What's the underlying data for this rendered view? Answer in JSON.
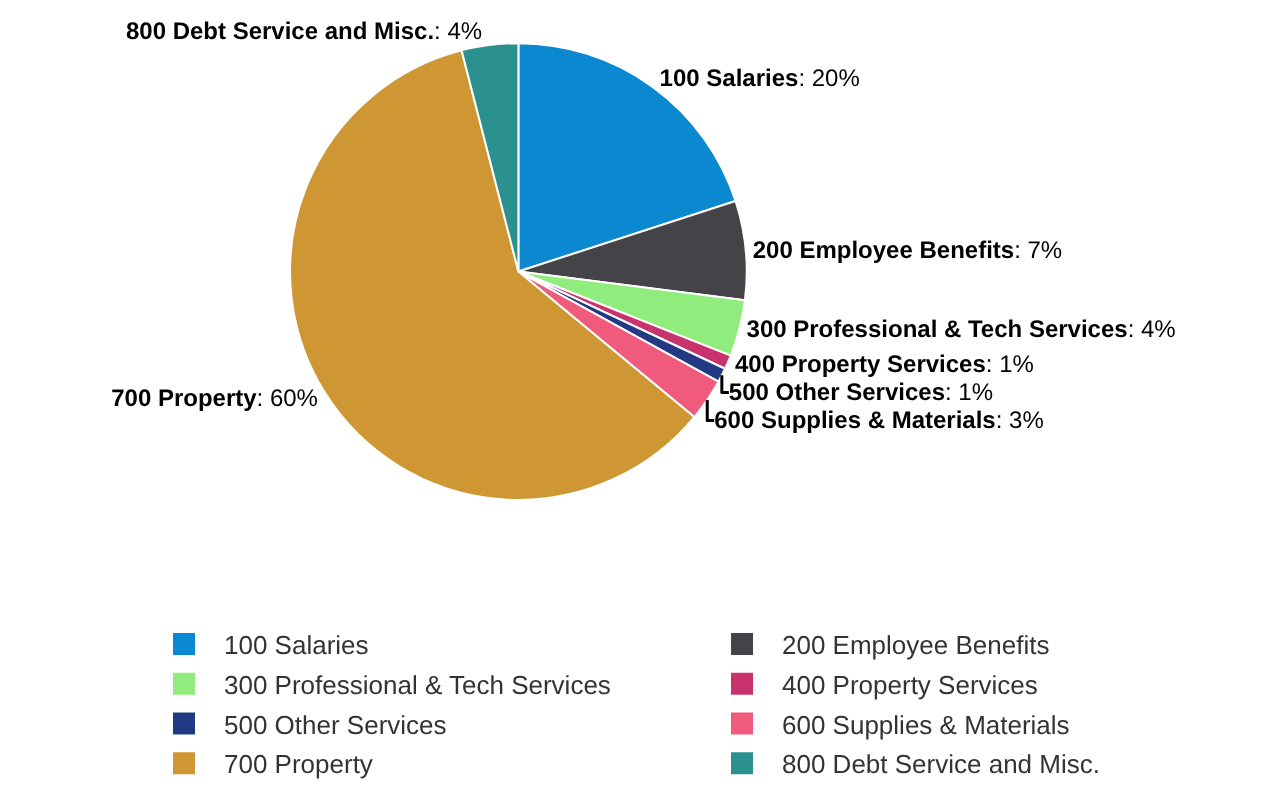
{
  "chart_data": {
    "type": "pie",
    "categories": [
      "100 Salaries",
      "200 Employee Benefits",
      "300 Professional & Tech Services",
      "400 Property Services",
      "500 Other Services",
      "600 Supplies & Materials",
      "700 Property",
      "800 Debt Service and Misc."
    ],
    "values": [
      20,
      7,
      4,
      1,
      1,
      3,
      60,
      4
    ],
    "value_labels": [
      ": 20%",
      ": 7%",
      ": 4%",
      ": 1%",
      ": 1%",
      ": 3%",
      ": 60%",
      ": 4%"
    ],
    "colors": [
      "#0a88d0",
      "#434348",
      "#90ed7d",
      "#c8336e",
      "#223a84",
      "#f05a7c",
      "#cf9733",
      "#2a918f"
    ],
    "legend": "bottom"
  }
}
